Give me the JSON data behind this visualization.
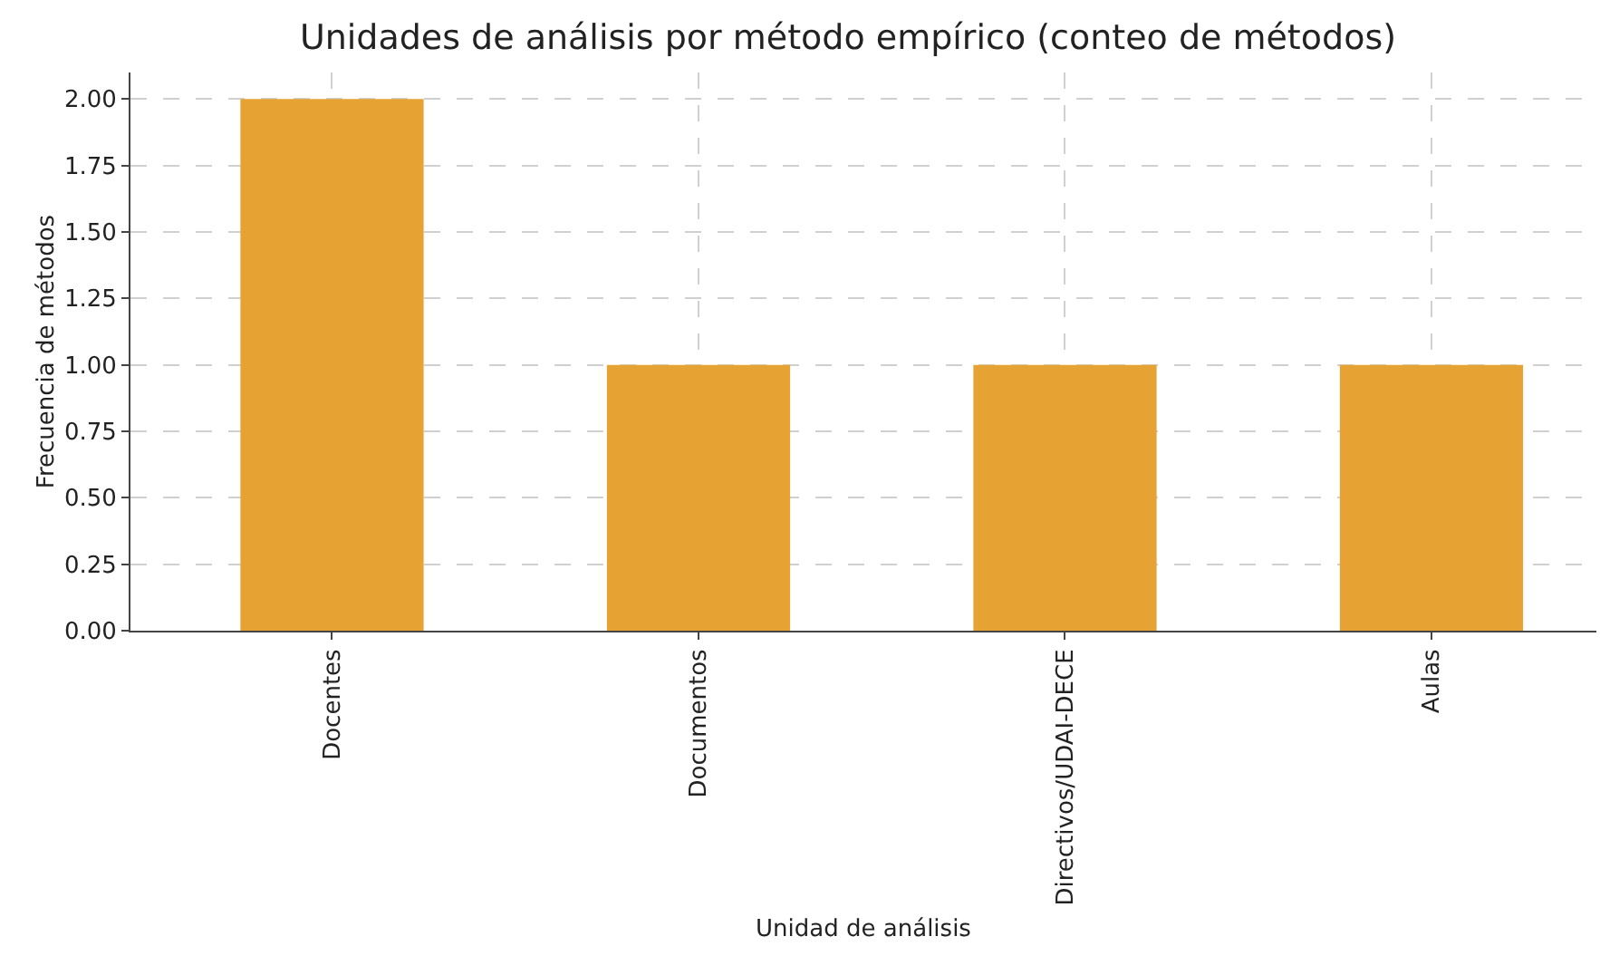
{
  "chart_data": {
    "type": "bar",
    "title": "Unidades de análisis por método empírico (conteo de métodos)",
    "xlabel": "Unidad de análisis",
    "ylabel": "Frecuencia de métodos",
    "categories": [
      "Docentes",
      "Documentos",
      "Directivos/UDAI-DECE",
      "Aulas"
    ],
    "values": [
      2,
      1,
      1,
      1
    ],
    "color": "#e6a232",
    "ylim": [
      0,
      2.1
    ],
    "yticks": [
      {
        "value": 0,
        "label": "0.00"
      },
      {
        "value": 0.25,
        "label": "0.25"
      },
      {
        "value": 0.5,
        "label": "0.50"
      },
      {
        "value": 0.75,
        "label": "0.75"
      },
      {
        "value": 1,
        "label": "1.00"
      },
      {
        "value": 1.25,
        "label": "1.25"
      },
      {
        "value": 1.5,
        "label": "1.50"
      },
      {
        "value": 1.75,
        "label": "1.75"
      },
      {
        "value": 2,
        "label": "2.00"
      }
    ],
    "grid": true
  }
}
